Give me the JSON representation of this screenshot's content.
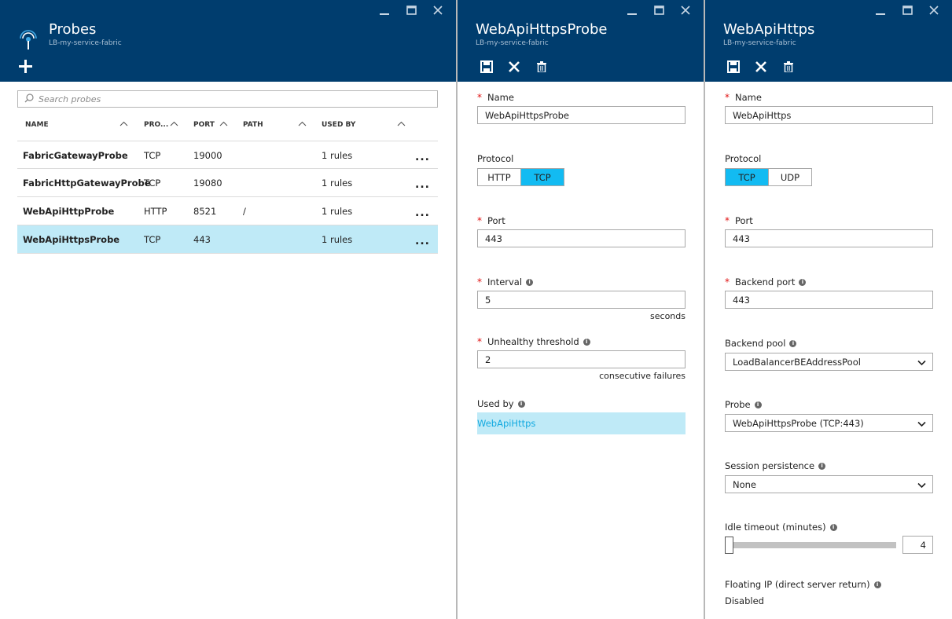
{
  "probes_blade": {
    "title": "Probes",
    "subtitle": "LB-my-service-fabric",
    "search_placeholder": "Search probes",
    "columns": [
      "NAME",
      "PRO...",
      "PORT",
      "PATH",
      "USED BY"
    ],
    "rows": [
      {
        "name": "FabricGatewayProbe",
        "protocol": "TCP",
        "port": "19000",
        "path": "",
        "used_by": "1 rules",
        "selected": false
      },
      {
        "name": "FabricHttpGatewayProbe",
        "protocol": "TCP",
        "port": "19080",
        "path": "",
        "used_by": "1 rules",
        "selected": false
      },
      {
        "name": "WebApiHttpProbe",
        "protocol": "HTTP",
        "port": "8521",
        "path": "/",
        "used_by": "1 rules",
        "selected": false
      },
      {
        "name": "WebApiHttpsProbe",
        "protocol": "TCP",
        "port": "443",
        "path": "",
        "used_by": "1 rules",
        "selected": true
      }
    ],
    "more_label": "..."
  },
  "probe_blade": {
    "title": "WebApiHttpsProbe",
    "subtitle": "LB-my-service-fabric",
    "name_label": "Name",
    "name_value": "WebApiHttpsProbe",
    "protocol_label": "Protocol",
    "protocol_options": [
      "HTTP",
      "TCP"
    ],
    "protocol_selected": "TCP",
    "port_label": "Port",
    "port_value": "443",
    "interval_label": "Interval",
    "interval_value": "5",
    "interval_unit": "seconds",
    "threshold_label": "Unhealthy threshold",
    "threshold_value": "2",
    "threshold_unit": "consecutive failures",
    "used_by_label": "Used by",
    "used_by_value": "WebApiHttps"
  },
  "rule_blade": {
    "title": "WebApiHttps",
    "subtitle": "LB-my-service-fabric",
    "name_label": "Name",
    "name_value": "WebApiHttps",
    "protocol_label": "Protocol",
    "protocol_options": [
      "TCP",
      "UDP"
    ],
    "protocol_selected": "TCP",
    "port_label": "Port",
    "port_value": "443",
    "backend_port_label": "Backend port",
    "backend_port_value": "443",
    "backend_pool_label": "Backend pool",
    "backend_pool_value": "LoadBalancerBEAddressPool",
    "probe_label": "Probe",
    "probe_value": "WebApiHttpsProbe (TCP:443)",
    "session_label": "Session persistence",
    "session_value": "None",
    "idle_label": "Idle timeout (minutes)",
    "idle_value": "4",
    "idle_slider_fraction": 0.0,
    "floating_label": "Floating IP (direct server return)",
    "floating_value": "Disabled"
  },
  "colors": {
    "header_bg": "#003d6e",
    "accent": "#12bbf2",
    "selected_row": "#bfeaf7",
    "required": "#e01010"
  },
  "icons": [
    "minimize-icon",
    "maximize-icon",
    "close-icon",
    "add-icon",
    "save-icon",
    "discard-icon",
    "delete-icon",
    "probe-icon",
    "search-icon",
    "info-icon",
    "chevron-down-icon"
  ]
}
